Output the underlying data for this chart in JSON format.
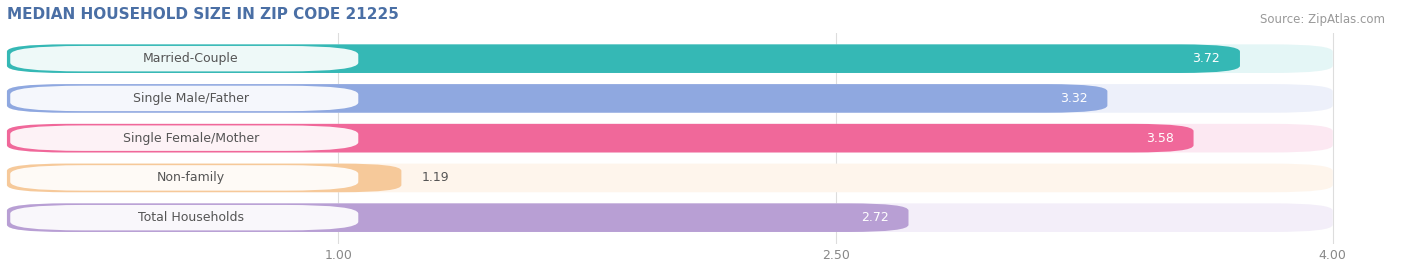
{
  "title": "MEDIAN HOUSEHOLD SIZE IN ZIP CODE 21225",
  "source": "Source: ZipAtlas.com",
  "categories": [
    "Married-Couple",
    "Single Male/Father",
    "Single Female/Mother",
    "Non-family",
    "Total Households"
  ],
  "values": [
    3.72,
    3.32,
    3.58,
    1.19,
    2.72
  ],
  "bar_colors": [
    "#35b8b5",
    "#8fa8e0",
    "#f0689a",
    "#f6c99a",
    "#b89fd4"
  ],
  "bar_bg_colors": [
    "#e4f6f6",
    "#edf0fa",
    "#fce8f2",
    "#fef5ec",
    "#f3eef9"
  ],
  "label_bg_color": "#ffffff",
  "xlim": [
    0.0,
    4.2
  ],
  "xmin": 0.0,
  "xmax": 4.0,
  "xticks": [
    1.0,
    2.5,
    4.0
  ],
  "value_fontsize": 9,
  "label_fontsize": 9,
  "title_fontsize": 11,
  "source_fontsize": 8.5,
  "title_color": "#4a6fa5",
  "label_color": "#555555",
  "source_color": "#999999"
}
